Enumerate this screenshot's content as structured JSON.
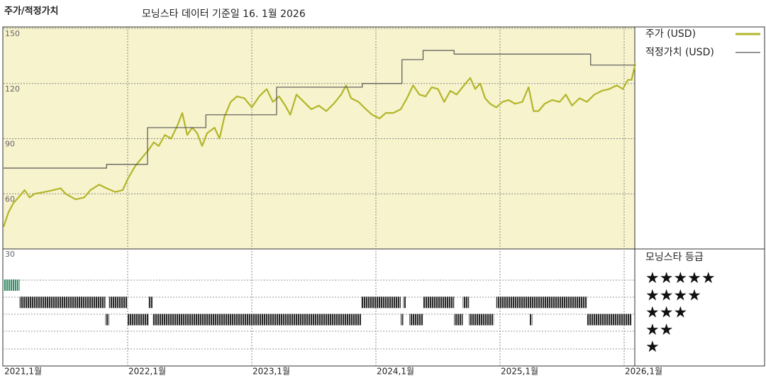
{
  "chart_data": {
    "type": "line",
    "title": "주가/적정가치",
    "subtitle": "모닝스타 데이터 기준일 16. 1월 2026",
    "xlim": [
      2021,
      2026.09
    ],
    "xticks": [
      {
        "value": 2021,
        "label": "2021,1월"
      },
      {
        "value": 2022,
        "label": "2022,1월"
      },
      {
        "value": 2023,
        "label": "2023,1월"
      },
      {
        "value": 2024,
        "label": "2024,1월"
      },
      {
        "value": 2025,
        "label": "2025,1월"
      },
      {
        "value": 2026,
        "label": "2026,1월"
      }
    ],
    "ylim": [
      30,
      150
    ],
    "yticks": [
      30,
      60,
      90,
      120,
      150
    ],
    "grid": true,
    "legend": "right",
    "series": [
      {
        "name": "주가 (USD)",
        "color": "#b3b52a",
        "step": false,
        "x": [
          2021.0,
          2021.04,
          2021.08,
          2021.12,
          2021.17,
          2021.21,
          2021.25,
          2021.33,
          2021.4,
          2021.46,
          2021.5,
          2021.58,
          2021.65,
          2021.7,
          2021.77,
          2021.83,
          2021.9,
          2021.96,
          2022.0,
          2022.06,
          2022.12,
          2022.17,
          2022.21,
          2022.25,
          2022.3,
          2022.35,
          2022.4,
          2022.44,
          2022.48,
          2022.52,
          2022.56,
          2022.6,
          2022.64,
          2022.7,
          2022.74,
          2022.78,
          2022.83,
          2022.88,
          2022.94,
          2023.0,
          2023.06,
          2023.12,
          2023.17,
          2023.22,
          2023.27,
          2023.31,
          2023.36,
          2023.42,
          2023.48,
          2023.54,
          2023.6,
          2023.66,
          2023.72,
          2023.76,
          2023.8,
          2023.86,
          2023.92,
          2023.97,
          2024.03,
          2024.08,
          2024.14,
          2024.2,
          2024.25,
          2024.3,
          2024.35,
          2024.4,
          2024.45,
          2024.5,
          2024.55,
          2024.6,
          2024.65,
          2024.71,
          2024.76,
          2024.8,
          2024.84,
          2024.88,
          2024.92,
          2024.97,
          2025.02,
          2025.07,
          2025.12,
          2025.18,
          2025.23,
          2025.27,
          2025.31,
          2025.36,
          2025.42,
          2025.48,
          2025.53,
          2025.58,
          2025.64,
          2025.7,
          2025.76,
          2025.82,
          2025.88,
          2025.94,
          2025.99,
          2026.03,
          2026.06,
          2026.08,
          2026.09
        ],
        "values": [
          42,
          50,
          55,
          58,
          62,
          58,
          60,
          61,
          62,
          63,
          60,
          57,
          58,
          62,
          65,
          63,
          61,
          62,
          68,
          75,
          80,
          84,
          88,
          86,
          92,
          90,
          97,
          104,
          92,
          96,
          93,
          86,
          93,
          96,
          90,
          102,
          110,
          113,
          112,
          107,
          113,
          117,
          110,
          113,
          108,
          103,
          114,
          110,
          106,
          108,
          105,
          109,
          114,
          119,
          112,
          110,
          106,
          103,
          101,
          104,
          104,
          106,
          112,
          119,
          114,
          113,
          118,
          117,
          110,
          116,
          114,
          119,
          123,
          117,
          120,
          112,
          109,
          107,
          110,
          111,
          109,
          110,
          118,
          105,
          105,
          109,
          111,
          110,
          114,
          108,
          112,
          110,
          114,
          116,
          117,
          119,
          117,
          122,
          122,
          128,
          131
        ]
      },
      {
        "name": "적정가치 (USD)",
        "color": "#555555",
        "step": true,
        "x": [
          2021.0,
          2021.83,
          2022.16,
          2022.63,
          2023.2,
          2023.89,
          2024.21,
          2024.38,
          2024.63,
          2025.73,
          2026.09
        ],
        "values": [
          74,
          76,
          96,
          103,
          118,
          120,
          133,
          138,
          136,
          130,
          130
        ]
      }
    ],
    "rating_title": "모닝스타 등급",
    "rating_labels": {
      "5": "★★★★★",
      "4": "★★★★",
      "3": "★★★",
      "2": "★★",
      "1": "★"
    },
    "rating_colors": {
      "5": "#3d8f6c",
      "default": "#2b2b2b"
    },
    "rating_periods": [
      {
        "start": 2021.0,
        "end": 2021.13,
        "stars": 5
      },
      {
        "start": 2021.13,
        "end": 2021.82,
        "stars": 4
      },
      {
        "start": 2021.82,
        "end": 2021.85,
        "stars": 3
      },
      {
        "start": 2021.85,
        "end": 2022.0,
        "stars": 4
      },
      {
        "start": 2022.0,
        "end": 2022.17,
        "stars": 3
      },
      {
        "start": 2022.17,
        "end": 2022.2,
        "stars": 4
      },
      {
        "start": 2022.2,
        "end": 2023.88,
        "stars": 3
      },
      {
        "start": 2023.88,
        "end": 2024.2,
        "stars": 4
      },
      {
        "start": 2024.2,
        "end": 2024.22,
        "stars": 3
      },
      {
        "start": 2024.22,
        "end": 2024.24,
        "stars": 4
      },
      {
        "start": 2024.27,
        "end": 2024.38,
        "stars": 3
      },
      {
        "start": 2024.38,
        "end": 2024.63,
        "stars": 4
      },
      {
        "start": 2024.63,
        "end": 2024.7,
        "stars": 3
      },
      {
        "start": 2024.7,
        "end": 2024.75,
        "stars": 4
      },
      {
        "start": 2024.75,
        "end": 2024.95,
        "stars": 3
      },
      {
        "start": 2024.97,
        "end": 2025.7,
        "stars": 4
      },
      {
        "start": 2025.24,
        "end": 2025.26,
        "stars": 3
      },
      {
        "start": 2025.7,
        "end": 2026.06,
        "stars": 3
      }
    ]
  }
}
